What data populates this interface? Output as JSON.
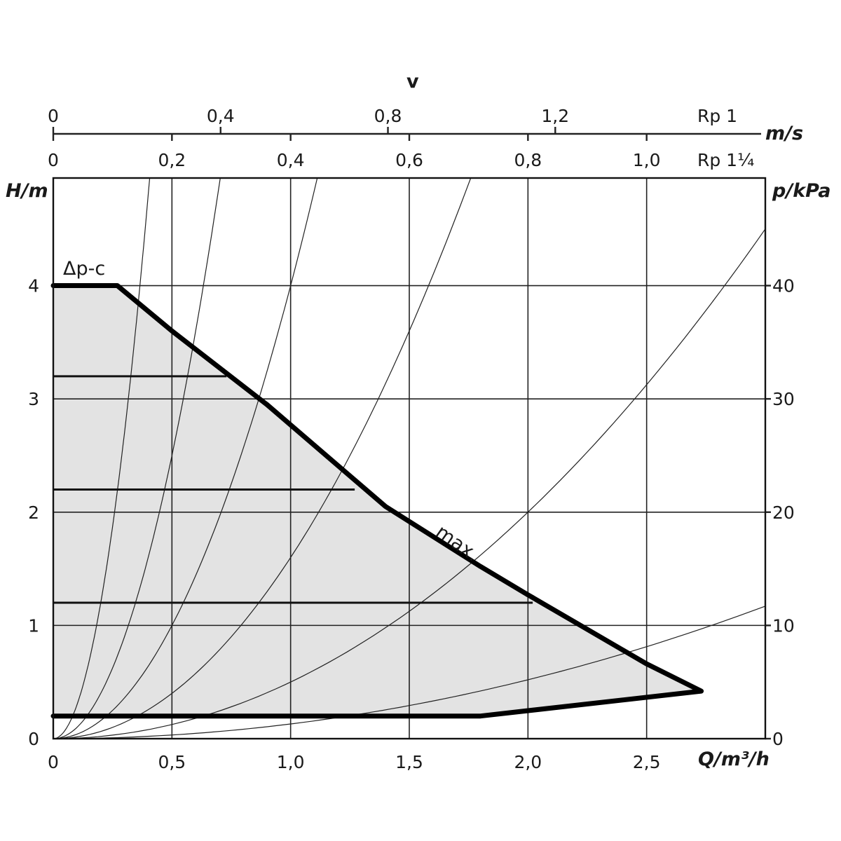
{
  "chart_data": {
    "type": "line",
    "x_axis": {
      "label": "Q/m³/h",
      "range": [
        0,
        3.0
      ],
      "ticks": [
        0,
        0.5,
        1.0,
        1.5,
        2.0,
        2.5
      ],
      "tick_labels": [
        "0",
        "0,5",
        "1,0",
        "1,5",
        "2,0",
        "2,5"
      ]
    },
    "y_axis_left": {
      "label": "H/m",
      "range": [
        0,
        4.95
      ],
      "ticks": [
        0,
        1,
        2,
        3,
        4
      ],
      "tick_labels": [
        "0",
        "1",
        "2",
        "3",
        "4"
      ]
    },
    "y_axis_right": {
      "label": "p/kPa",
      "ticks": [
        0,
        10,
        20,
        30,
        40
      ],
      "tick_labels": [
        "0",
        "10",
        "20",
        "30",
        "40"
      ]
    },
    "velocity_axis": {
      "title": "v",
      "unit": "m/s",
      "rows": [
        {
          "pipe": "Rp 1",
          "ticks": [
            0,
            0.4,
            0.8,
            1.2
          ],
          "tick_labels": [
            "0",
            "0,4",
            "0,8",
            "1,2"
          ],
          "q_per_mps": 1.7625
        },
        {
          "pipe": "Rp 1¼",
          "ticks": [
            0,
            0.2,
            0.4,
            0.6,
            0.8,
            1.0
          ],
          "tick_labels": [
            "0",
            "0,2",
            "0,4",
            "0,6",
            "0,8",
            "1,0"
          ],
          "q_per_mps": 2.5
        }
      ]
    },
    "grid": true,
    "series": [
      {
        "name": "max.",
        "points": [
          [
            0,
            4.0
          ],
          [
            0.27,
            4.0
          ],
          [
            0.5,
            3.6
          ],
          [
            0.9,
            2.95
          ],
          [
            1.4,
            2.05
          ],
          [
            1.8,
            1.52
          ],
          [
            2.0,
            1.27
          ],
          [
            2.5,
            0.66
          ],
          [
            2.73,
            0.42
          ],
          [
            1.8,
            0.2
          ],
          [
            0,
            0.2
          ]
        ]
      },
      {
        "name": "Δp-c",
        "points": [
          [
            0,
            4.0
          ],
          [
            0.27,
            4.0
          ]
        ]
      }
    ],
    "setpoint_lines": [
      {
        "h": 3.2,
        "x_end": 0.73
      },
      {
        "h": 2.2,
        "x_end": 1.27
      },
      {
        "h": 1.2,
        "x_end": 2.02
      },
      {
        "h": 0.2,
        "x_end": 1.8
      }
    ],
    "system_curves_k": [
      30,
      10,
      4,
      1.6,
      0.5,
      0.13
    ],
    "annotations": [
      {
        "text": "Δp-c",
        "at": [
          0.05,
          4.15
        ]
      },
      {
        "text": "max.",
        "at": [
          1.69,
          1.7
        ]
      }
    ]
  }
}
